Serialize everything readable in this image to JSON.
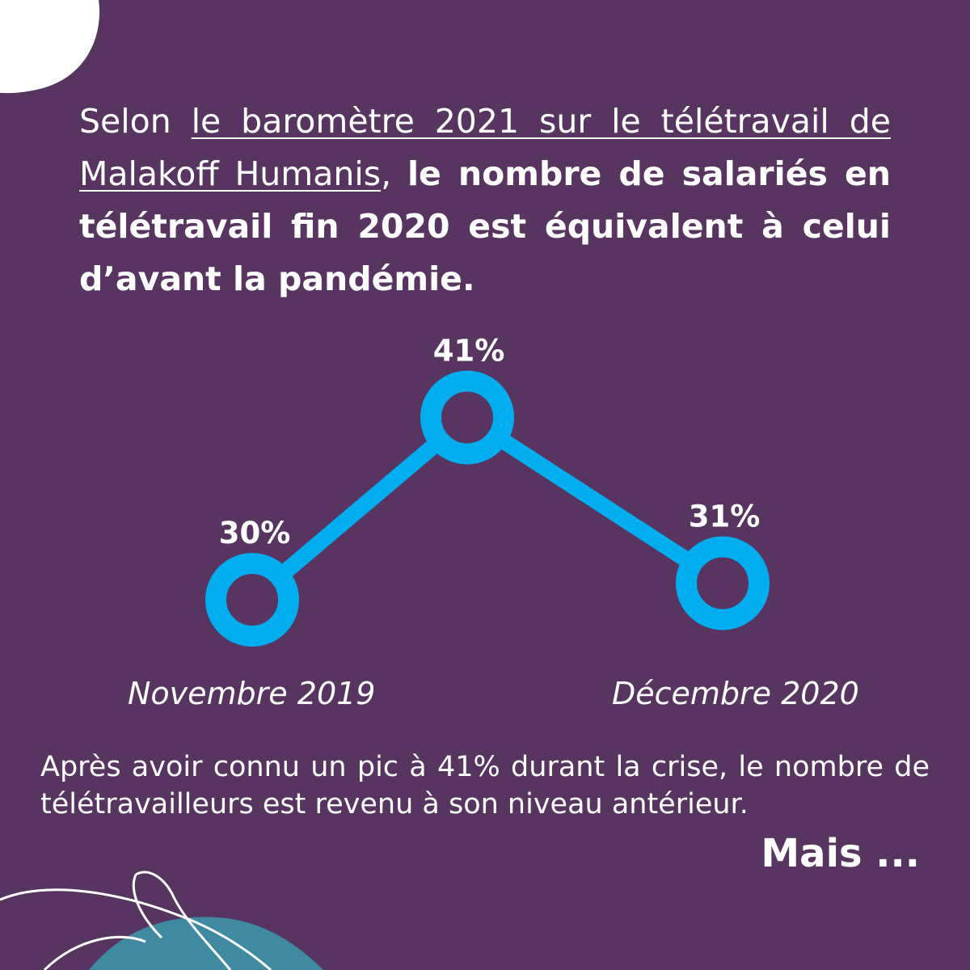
{
  "intro": {
    "lead": "Selon ",
    "link": "le baromètre 2021 sur le télétravail de Malakoff Humanis",
    "comma": ", ",
    "bold": "le nombre de salariés en télétravail fin 2020 est équivalent à celui d’avant la pandémie."
  },
  "chart_data": {
    "type": "line",
    "x": [
      "Novembre 2019",
      "",
      "Décembre 2020"
    ],
    "values": [
      30,
      41,
      31
    ],
    "data_labels": [
      "30%",
      "41%",
      "31%"
    ],
    "x_tick_labels": [
      "Novembre 2019",
      "Décembre 2020"
    ],
    "title": "",
    "xlabel": "",
    "ylabel": "",
    "grid": false,
    "colors": {
      "line": "#00aeef"
    }
  },
  "summary": "Après avoir connu un pic à 41% durant la crise, le nombre de télétravailleurs est revenu à son niveau antérieur.",
  "closing": "Mais ...",
  "colors": {
    "background": "#583461",
    "accent": "#00aeef",
    "text": "#ffffff",
    "blob_teal": "#3f8aa0"
  }
}
